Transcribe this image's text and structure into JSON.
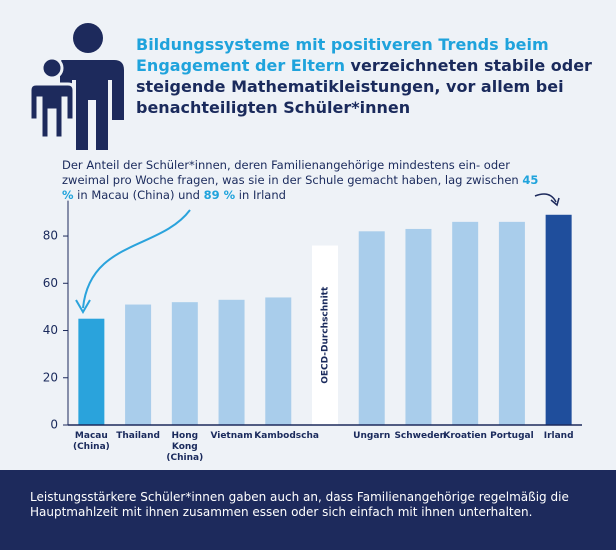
{
  "chart_data": {
    "type": "bar",
    "title_highlight": "Bildungssysteme mit positiveren Trends beim Engagement der Eltern",
    "title_rest": " verzeichneten stabile oder steigende Mathematik­leistungen, vor allem bei benachteiligten Schüler*innen",
    "annotation": [
      "Der Anteil der Schüler*innen, deren Familienangehörige mindestens ein- oder zweimal pro Woche fragen, was sie in der Schule gemacht haben, lag zwischen ",
      "45 %",
      " in Macau (China) und ",
      "89 %",
      " in Irland"
    ],
    "categories": [
      "Macau (China)",
      "Thailand",
      "Hong Kong (China)",
      "Vietnam",
      "Kambodscha",
      "OECD-Durchschnitt",
      "Ungarn",
      "Schweden",
      "Kroatien",
      "Portugal",
      "Irland"
    ],
    "values": [
      45,
      51,
      52,
      53,
      54,
      76,
      82,
      83,
      86,
      86,
      89
    ],
    "colors": [
      "#2aa3dc",
      "#a9cdeb",
      "#a9cdeb",
      "#a9cdeb",
      "#a9cdeb",
      "#ffffff",
      "#a9cdeb",
      "#a9cdeb",
      "#a9cdeb",
      "#a9cdeb",
      "#1f4e9c"
    ],
    "ylim": [
      0,
      95
    ],
    "yticks": [
      0,
      20,
      40,
      60,
      80
    ],
    "footer": "Leistungsstärkere Schüler*innen gaben auch an, dass Familienangehörige regelmäßig die Hauptmahlzeit mit ihnen zusammen essen oder sich einfach mit ihnen unterhalten."
  }
}
